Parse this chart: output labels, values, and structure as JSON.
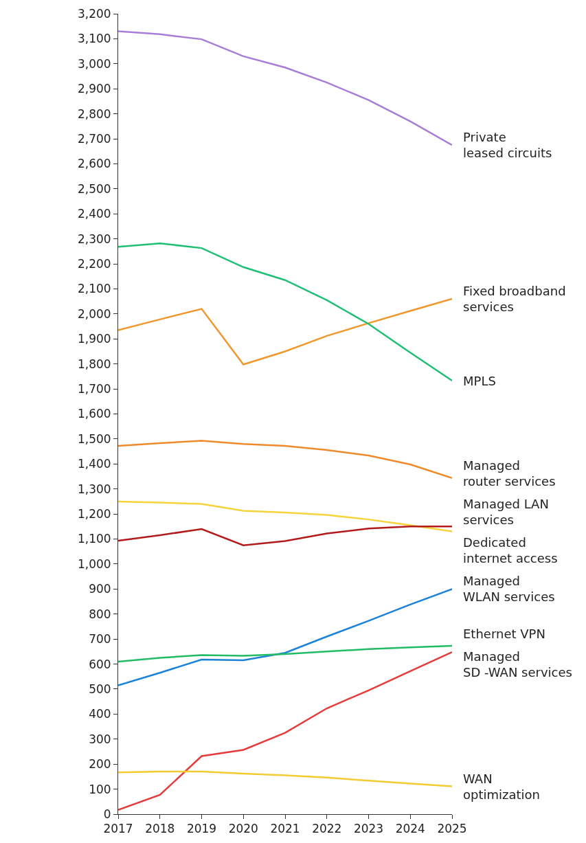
{
  "chart_data": {
    "type": "line",
    "categories": [
      "2017",
      "2018",
      "2019",
      "2020",
      "2021",
      "2022",
      "2023",
      "2024",
      "2025"
    ],
    "ylim": [
      0,
      3200
    ],
    "yticks": [
      0,
      {
        "value": 100,
        "label": "100"
      },
      200,
      300,
      400,
      500,
      600,
      700,
      800,
      900,
      {
        "value": 1000,
        "label": "1,000"
      },
      {
        "value": 1100,
        "label": "1,100"
      },
      {
        "value": 1200,
        "label": "1,200"
      },
      {
        "value": 1300,
        "label": "1,300"
      },
      {
        "value": 1400,
        "label": "1,400"
      },
      {
        "value": 1500,
        "label": "1,500"
      },
      {
        "value": 1600,
        "label": "1,600"
      },
      {
        "value": 1700,
        "label": "1,700"
      },
      {
        "value": 1800,
        "label": "1,800"
      },
      {
        "value": 1900,
        "label": "1,900"
      },
      {
        "value": 2000,
        "label": "2,000"
      },
      {
        "value": 2100,
        "label": "2,100"
      },
      {
        "value": 2200,
        "label": "2,200"
      },
      {
        "value": 2300,
        "label": "2,300"
      },
      {
        "value": 2400,
        "label": "2,400"
      },
      {
        "value": 2500,
        "label": "2,500"
      },
      {
        "value": 2600,
        "label": "2,600"
      },
      {
        "value": 2700,
        "label": "2,700"
      },
      {
        "value": 2800,
        "label": "2,800"
      },
      {
        "value": 2900,
        "label": "2,900"
      },
      {
        "value": 3000,
        "label": "3,000"
      },
      {
        "value": 3100,
        "label": "3,100"
      },
      {
        "value": 3200,
        "label": "3,200"
      }
    ],
    "legend": false,
    "marker": "none",
    "line_style": "solid",
    "series": [
      {
        "name": "Private\nleased circuits",
        "color": "#a87dd6",
        "values": [
          3130,
          3118,
          3098,
          3030,
          2985,
          2925,
          2855,
          2770,
          2675
        ]
      },
      {
        "name": "Fixed broadband\nservices",
        "color": "#f0962b",
        "values": [
          1935,
          1978,
          2020,
          1798,
          1850,
          1912,
          1963,
          2012,
          2060
        ]
      },
      {
        "name": "MPLS",
        "color": "#1fbf75",
        "values": [
          2268,
          2282,
          2263,
          2187,
          2135,
          2055,
          1960,
          1845,
          1733
        ]
      },
      {
        "name": "Managed\nrouter services",
        "color": "#ef8a2a",
        "values": [
          1472,
          1483,
          1493,
          1480,
          1472,
          1456,
          1434,
          1398,
          1344
        ]
      },
      {
        "name": "Dedicated\ninternet access",
        "color": "#f5d43b",
        "values": [
          1250,
          1246,
          1240,
          1213,
          1206,
          1196,
          1178,
          1155,
          1130
        ]
      },
      {
        "name": "Managed LAN\nservices",
        "color": "#b31b1b",
        "values": [
          1093,
          1115,
          1140,
          1075,
          1092,
          1122,
          1142,
          1150,
          1150
        ]
      },
      {
        "name": "Managed\nWLAN services",
        "color": "#1a83d9",
        "values": [
          515,
          565,
          618,
          615,
          645,
          710,
          773,
          838,
          900
        ]
      },
      {
        "name": "Ethernet VPN",
        "color": "#22bb66",
        "values": [
          610,
          625,
          636,
          633,
          640,
          650,
          660,
          667,
          673
        ]
      },
      {
        "name": "Managed\nSD -WAN services",
        "color": "#e53b3b",
        "values": [
          17,
          77,
          232,
          257,
          325,
          423,
          495,
          572,
          648
        ]
      },
      {
        "name": "WAN\noptimization",
        "color": "#f2cc30",
        "values": [
          167,
          170,
          170,
          162,
          155,
          146,
          134,
          122,
          111
        ]
      }
    ]
  }
}
